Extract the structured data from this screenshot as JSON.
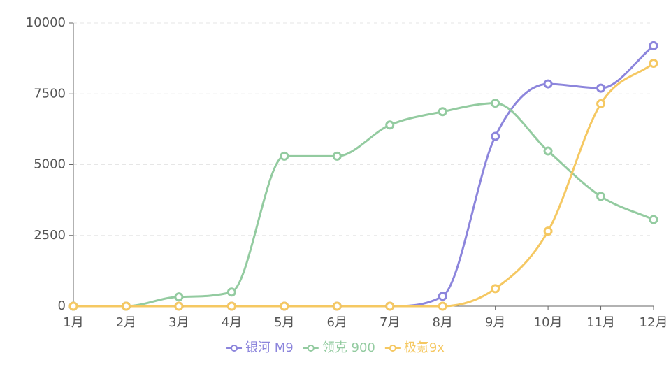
{
  "chart_data": {
    "type": "line",
    "categories": [
      "1月",
      "2月",
      "3月",
      "4月",
      "5月",
      "6月",
      "7月",
      "8月",
      "9月",
      "10月",
      "11月",
      "12月"
    ],
    "series": [
      {
        "name": "银河 M9",
        "color": "#8c85dc",
        "values": [
          0,
          0,
          0,
          0,
          0,
          0,
          0,
          350,
          6000,
          7850,
          7700,
          9200
        ]
      },
      {
        "name": "领克 900",
        "color": "#93cba0",
        "values": [
          0,
          0,
          330,
          500,
          5300,
          5300,
          6400,
          6870,
          7170,
          5480,
          3880,
          3060
        ]
      },
      {
        "name": "极氪9x",
        "color": "#f5c862",
        "values": [
          0,
          0,
          0,
          0,
          0,
          0,
          0,
          0,
          620,
          2650,
          7150,
          8580
        ]
      }
    ],
    "ylim": [
      0,
      10000
    ],
    "yticks": [
      0,
      2500,
      5000,
      7500,
      10000
    ],
    "grid": true,
    "legend": "bottom"
  }
}
